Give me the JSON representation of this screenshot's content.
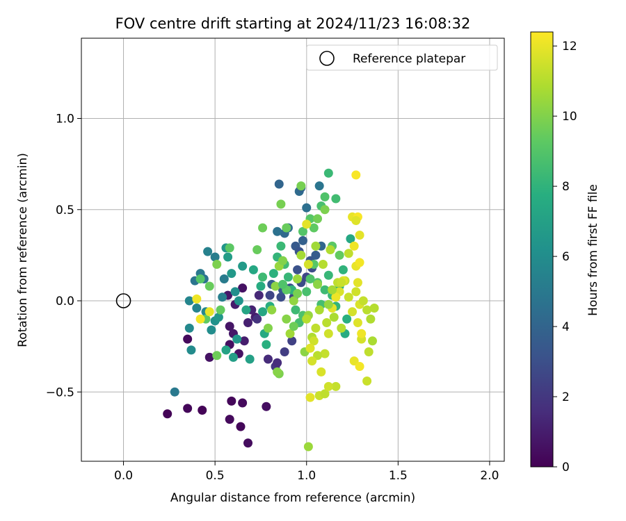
{
  "chart_data": {
    "type": "scatter",
    "title": "FOV centre drift starting at 2024/11/23 16:08:32",
    "xlabel": "Angular distance from reference (arcmin)",
    "ylabel": "Rotation from reference (arcmin)",
    "xlim": [
      -0.23,
      2.08
    ],
    "ylim": [
      -0.88,
      1.44
    ],
    "xticks": [
      0.0,
      0.5,
      1.0,
      1.5,
      2.0
    ],
    "xtick_labels": [
      "0.0",
      "0.5",
      "1.0",
      "1.5",
      "2.0"
    ],
    "yticks": [
      -0.5,
      0.0,
      0.5,
      1.0
    ],
    "ytick_labels": [
      "−0.5",
      "0.0",
      "0.5",
      "1.0"
    ],
    "grid": true,
    "legend": {
      "position": "top-right",
      "entries": [
        "Reference platepar"
      ]
    },
    "reference_point": {
      "x": 0.0,
      "y": 0.0
    },
    "colorbar": {
      "label": "Hours from first FF file",
      "range": [
        0,
        12.4
      ],
      "ticks": [
        0,
        2,
        4,
        6,
        8,
        10,
        12
      ],
      "tick_labels": [
        "0",
        "2",
        "4",
        "6",
        "8",
        "10",
        "12"
      ],
      "colormap": "viridis"
    },
    "points": [
      [
        0.24,
        -0.62,
        0.1
      ],
      [
        0.35,
        -0.59,
        0.2
      ],
      [
        0.43,
        -0.6,
        0.1
      ],
      [
        0.35,
        -0.21,
        0.3
      ],
      [
        0.28,
        -0.5,
        5.0
      ],
      [
        0.59,
        -0.55,
        0.2
      ],
      [
        0.58,
        -0.65,
        0.3
      ],
      [
        0.64,
        -0.69,
        0.2
      ],
      [
        0.65,
        -0.56,
        0.3
      ],
      [
        0.68,
        -0.78,
        0.4
      ],
      [
        0.78,
        -0.58,
        0.5
      ],
      [
        0.47,
        -0.31,
        0.6
      ],
      [
        0.58,
        -0.24,
        0.5
      ],
      [
        0.63,
        -0.29,
        0.6
      ],
      [
        0.58,
        -0.14,
        0.7
      ],
      [
        0.6,
        -0.18,
        0.8
      ],
      [
        0.66,
        -0.22,
        1.0
      ],
      [
        0.68,
        -0.12,
        1.1
      ],
      [
        0.72,
        -0.09,
        0.9
      ],
      [
        0.65,
        0.07,
        0.6
      ],
      [
        0.57,
        0.03,
        0.8
      ],
      [
        0.61,
        -0.02,
        0.9
      ],
      [
        0.7,
        -0.05,
        1.2
      ],
      [
        0.74,
        0.03,
        1.4
      ],
      [
        0.79,
        -0.32,
        1.5
      ],
      [
        0.83,
        -0.36,
        2.0
      ],
      [
        0.84,
        -0.34,
        1.6
      ],
      [
        0.73,
        -0.1,
        1.8
      ],
      [
        0.88,
        -0.28,
        2.2
      ],
      [
        0.92,
        -0.22,
        2.4
      ],
      [
        0.8,
        0.03,
        2.6
      ],
      [
        0.86,
        0.02,
        2.9
      ],
      [
        0.85,
        0.64,
        4.0
      ],
      [
        0.96,
        0.6,
        4.3
      ],
      [
        0.97,
        0.62,
        3.9
      ],
      [
        1.0,
        0.51,
        4.5
      ],
      [
        1.07,
        0.63,
        4.8
      ],
      [
        0.88,
        0.37,
        4.2
      ],
      [
        0.84,
        0.38,
        4.6
      ],
      [
        0.9,
        0.4,
        4.4
      ],
      [
        0.94,
        0.3,
        3.5
      ],
      [
        0.96,
        0.27,
        3.2
      ],
      [
        0.98,
        0.33,
        3.8
      ],
      [
        1.02,
        0.22,
        3.3
      ],
      [
        0.95,
        0.17,
        3.1
      ],
      [
        0.97,
        0.1,
        2.8
      ],
      [
        1.0,
        0.13,
        2.6
      ],
      [
        1.03,
        0.18,
        2.9
      ],
      [
        1.05,
        0.25,
        3.6
      ],
      [
        1.08,
        0.3,
        4.1
      ],
      [
        0.91,
        0.07,
        3.0
      ],
      [
        0.93,
        0.02,
        2.5
      ],
      [
        0.87,
        0.06,
        3.4
      ],
      [
        0.81,
        0.09,
        3.7
      ],
      [
        0.39,
        0.11,
        4.8
      ],
      [
        0.42,
        0.15,
        5.0
      ],
      [
        0.44,
        0.12,
        4.7
      ],
      [
        0.46,
        0.27,
        5.4
      ],
      [
        0.5,
        0.24,
        5.2
      ],
      [
        0.36,
        0.0,
        5.6
      ],
      [
        0.36,
        -0.15,
        5.8
      ],
      [
        0.37,
        -0.27,
        5.9
      ],
      [
        0.4,
        -0.04,
        5.5
      ],
      [
        0.45,
        -0.06,
        5.7
      ],
      [
        0.48,
        -0.16,
        6.0
      ],
      [
        0.5,
        -0.11,
        6.2
      ],
      [
        0.52,
        -0.09,
        6.5
      ],
      [
        0.54,
        0.02,
        5.3
      ],
      [
        0.55,
        0.12,
        5.1
      ],
      [
        0.56,
        0.29,
        6.4
      ],
      [
        0.57,
        0.24,
        6.8
      ],
      [
        0.59,
        0.15,
        6.6
      ],
      [
        0.61,
        0.05,
        6.1
      ],
      [
        0.63,
        0.0,
        6.3
      ],
      [
        0.65,
        0.19,
        6.7
      ],
      [
        0.6,
        -0.31,
        6.9
      ],
      [
        0.56,
        -0.27,
        7.1
      ],
      [
        0.62,
        -0.21,
        6.5
      ],
      [
        0.69,
        -0.32,
        7.0
      ],
      [
        0.67,
        -0.05,
        7.2
      ],
      [
        0.71,
        0.17,
        7.4
      ],
      [
        0.75,
        0.08,
        7.6
      ],
      [
        0.76,
        -0.06,
        7.3
      ],
      [
        0.77,
        -0.18,
        7.5
      ],
      [
        0.78,
        -0.24,
        7.8
      ],
      [
        0.8,
        -0.03,
        7.7
      ],
      [
        0.82,
        0.15,
        7.9
      ],
      [
        0.84,
        0.24,
        8.1
      ],
      [
        0.86,
        0.3,
        8.3
      ],
      [
        0.88,
        0.2,
        8.5
      ],
      [
        0.9,
        0.13,
        8.2
      ],
      [
        0.92,
        0.06,
        8.0
      ],
      [
        0.94,
        -0.05,
        8.4
      ],
      [
        0.96,
        -0.12,
        8.6
      ],
      [
        0.98,
        -0.08,
        8.8
      ],
      [
        1.0,
        0.05,
        8.7
      ],
      [
        1.02,
        0.12,
        8.9
      ],
      [
        1.04,
        0.2,
        9.1
      ],
      [
        1.06,
        0.1,
        9.0
      ],
      [
        1.08,
        -0.02,
        8.6
      ],
      [
        1.1,
        0.06,
        8.4
      ],
      [
        1.12,
        0.14,
        8.2
      ],
      [
        1.14,
        0.03,
        8.3
      ],
      [
        1.16,
        -0.03,
        8.1
      ],
      [
        1.18,
        0.08,
        7.9
      ],
      [
        1.2,
        0.17,
        8.0
      ],
      [
        1.22,
        -0.1,
        7.8
      ],
      [
        1.21,
        -0.18,
        7.6
      ],
      [
        1.24,
        0.34,
        7.4
      ],
      [
        1.12,
        0.7,
        8.3
      ],
      [
        1.16,
        0.56,
        8.5
      ],
      [
        1.08,
        0.52,
        8.7
      ],
      [
        1.1,
        0.57,
        8.9
      ],
      [
        1.02,
        0.45,
        9.1
      ],
      [
        1.04,
        0.4,
        9.3
      ],
      [
        0.98,
        0.38,
        9.0
      ],
      [
        1.14,
        0.3,
        9.2
      ],
      [
        1.18,
        0.25,
        9.4
      ],
      [
        0.76,
        0.4,
        9.6
      ],
      [
        0.86,
        0.53,
        9.8
      ],
      [
        0.89,
        0.4,
        9.5
      ],
      [
        0.97,
        0.63,
        9.8
      ],
      [
        1.1,
        0.5,
        9.9
      ],
      [
        1.06,
        0.45,
        9.7
      ],
      [
        0.51,
        0.2,
        9.9
      ],
      [
        0.47,
        0.08,
        9.5
      ],
      [
        0.53,
        -0.05,
        9.4
      ],
      [
        0.58,
        0.29,
        9.2
      ],
      [
        0.42,
        0.12,
        9.0
      ],
      [
        0.45,
        -0.1,
        9.3
      ],
      [
        0.51,
        -0.3,
        9.6
      ],
      [
        0.73,
        0.28,
        9.5
      ],
      [
        0.79,
        -0.15,
        10.0
      ],
      [
        0.85,
        -0.4,
        9.9
      ],
      [
        0.84,
        -0.39,
        10.1
      ],
      [
        0.81,
        -0.05,
        10.3
      ],
      [
        0.83,
        0.08,
        10.2
      ],
      [
        0.85,
        0.19,
        10.4
      ],
      [
        0.87,
        0.22,
        10.0
      ],
      [
        0.89,
        -0.1,
        10.1
      ],
      [
        0.91,
        -0.18,
        10.6
      ],
      [
        0.93,
        0.0,
        10.3
      ],
      [
        0.95,
        0.12,
        10.5
      ],
      [
        0.97,
        0.25,
        10.7
      ],
      [
        0.99,
        -0.28,
        10.2
      ],
      [
        1.01,
        -0.08,
        10.4
      ],
      [
        1.03,
        -0.2,
        10.9
      ],
      [
        1.05,
        0.3,
        10.6
      ],
      [
        1.07,
        -0.05,
        10.8
      ],
      [
        1.09,
        0.2,
        11.0
      ],
      [
        1.11,
        -0.12,
        11.1
      ],
      [
        1.13,
        0.28,
        10.9
      ],
      [
        1.15,
        -0.09,
        10.8
      ],
      [
        1.17,
        0.1,
        11.2
      ],
      [
        1.19,
        -0.15,
        11.0
      ],
      [
        1.21,
        0.11,
        11.3
      ],
      [
        1.23,
        0.02,
        11.4
      ],
      [
        1.25,
        -0.06,
        11.6
      ],
      [
        1.27,
        0.05,
        11.5
      ],
      [
        1.29,
        -0.02,
        11.7
      ],
      [
        1.31,
        0.0,
        11.3
      ],
      [
        1.33,
        -0.05,
        11.1
      ],
      [
        1.35,
        -0.1,
        10.9
      ],
      [
        1.36,
        -0.22,
        10.8
      ],
      [
        1.37,
        -0.04,
        11.0
      ],
      [
        1.34,
        -0.28,
        11.2
      ],
      [
        1.33,
        -0.44,
        11.4
      ],
      [
        1.3,
        -0.21,
        11.6
      ],
      [
        1.28,
        -0.12,
        11.8
      ],
      [
        1.26,
        -0.33,
        12.0
      ],
      [
        1.29,
        -0.36,
        12.2
      ],
      [
        1.3,
        -0.18,
        12.1
      ],
      [
        1.28,
        0.1,
        11.9
      ],
      [
        1.27,
        0.19,
        12.0
      ],
      [
        1.29,
        0.21,
        12.2
      ],
      [
        1.26,
        0.3,
        12.1
      ],
      [
        1.25,
        0.46,
        12.0
      ],
      [
        1.28,
        0.46,
        12.3
      ],
      [
        1.27,
        0.44,
        11.8
      ],
      [
        1.29,
        0.36,
        11.9
      ],
      [
        1.27,
        0.69,
        12.3
      ],
      [
        1.2,
        0.11,
        11.9
      ],
      [
        1.18,
        0.05,
        11.7
      ],
      [
        1.16,
        0.02,
        12.1
      ],
      [
        1.14,
        -0.04,
        11.9
      ],
      [
        1.12,
        -0.18,
        11.5
      ],
      [
        1.1,
        -0.29,
        11.3
      ],
      [
        1.08,
        -0.39,
        11.7
      ],
      [
        1.06,
        -0.3,
        11.1
      ],
      [
        1.04,
        -0.22,
        11.5
      ],
      [
        1.02,
        -0.26,
        11.8
      ],
      [
        1.03,
        -0.33,
        11.6
      ],
      [
        1.07,
        -0.52,
        11.4
      ],
      [
        1.1,
        -0.51,
        11.2
      ],
      [
        1.02,
        -0.53,
        11.9
      ],
      [
        1.16,
        -0.47,
        11.3
      ],
      [
        1.12,
        -0.47,
        11.5
      ],
      [
        1.05,
        -0.15,
        11.2
      ],
      [
        1.0,
        -0.1,
        11.0
      ],
      [
        1.01,
        -0.8,
        10.5
      ],
      [
        0.4,
        0.01,
        12.1
      ],
      [
        0.42,
        -0.1,
        12.2
      ],
      [
        0.47,
        -0.06,
        12.0
      ],
      [
        1.0,
        0.42,
        11.9
      ],
      [
        1.01,
        0.2,
        11.6
      ],
      [
        1.19,
        0.1,
        11.4
      ],
      [
        1.23,
        0.26,
        11.2
      ],
      [
        1.14,
        0.06,
        10.7
      ],
      [
        1.12,
        -0.02,
        10.4
      ],
      [
        1.06,
        0.09,
        10.2
      ],
      [
        0.95,
        0.04,
        9.8
      ],
      [
        0.93,
        -0.14,
        9.6
      ],
      [
        0.89,
        0.06,
        9.3
      ],
      [
        0.87,
        0.09,
        8.9
      ],
      [
        0.76,
        0.13,
        8.4
      ]
    ]
  }
}
